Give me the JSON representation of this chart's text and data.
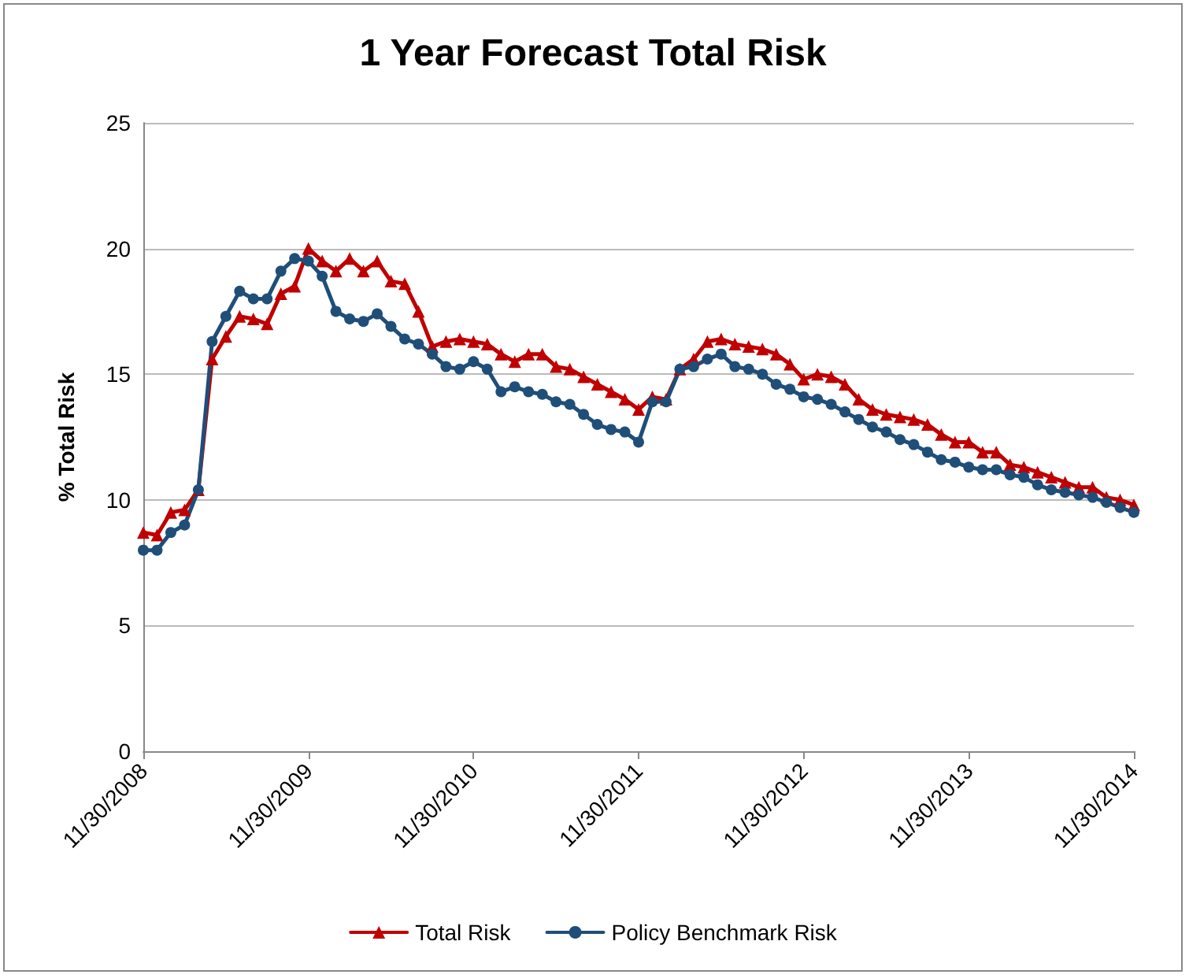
{
  "chart_data": {
    "type": "line",
    "title": "1 Year Forecast Total Risk",
    "ylabel": "% Total Risk",
    "categories": [
      "11/30/2008",
      null,
      null,
      null,
      null,
      null,
      null,
      null,
      null,
      null,
      null,
      null,
      "11/30/2009",
      null,
      null,
      null,
      null,
      null,
      null,
      null,
      null,
      null,
      null,
      null,
      "11/30/2010",
      null,
      null,
      null,
      null,
      null,
      null,
      null,
      null,
      null,
      null,
      null,
      "11/30/2011",
      null,
      null,
      null,
      null,
      null,
      null,
      null,
      null,
      null,
      null,
      null,
      "11/30/2012",
      null,
      null,
      null,
      null,
      null,
      null,
      null,
      null,
      null,
      null,
      null,
      "11/30/2013",
      null,
      null,
      null,
      null,
      null,
      null,
      null,
      null,
      null,
      null,
      null,
      "11/30/2014"
    ],
    "series": [
      {
        "name": "Total Risk",
        "color": "#c00000",
        "marker": "triangle",
        "values": [
          8.7,
          8.6,
          9.5,
          9.6,
          10.4,
          15.6,
          16.5,
          17.3,
          17.2,
          17.0,
          18.2,
          18.5,
          20.0,
          19.5,
          19.1,
          19.6,
          19.1,
          19.5,
          18.7,
          18.6,
          17.5,
          16.1,
          16.3,
          16.4,
          16.3,
          16.2,
          15.8,
          15.5,
          15.8,
          15.8,
          15.3,
          15.2,
          14.9,
          14.6,
          14.3,
          14.0,
          13.6,
          14.1,
          14.0,
          15.2,
          15.6,
          16.3,
          16.4,
          16.2,
          16.1,
          16.0,
          15.8,
          15.4,
          14.8,
          15.0,
          14.9,
          14.6,
          14.0,
          13.6,
          13.4,
          13.3,
          13.2,
          13.0,
          12.6,
          12.3,
          12.3,
          11.9,
          11.9,
          11.4,
          11.3,
          11.1,
          10.9,
          10.7,
          10.5,
          10.5,
          10.1,
          10.0,
          9.8
        ]
      },
      {
        "name": "Policy Benchmark Risk",
        "color": "#1f4e79",
        "marker": "circle",
        "values": [
          8.0,
          8.0,
          8.7,
          9.0,
          10.4,
          16.3,
          17.3,
          18.3,
          18.0,
          18.0,
          19.1,
          19.6,
          19.5,
          18.9,
          17.5,
          17.2,
          17.1,
          17.4,
          16.9,
          16.4,
          16.2,
          15.8,
          15.3,
          15.2,
          15.5,
          15.2,
          14.3,
          14.5,
          14.3,
          14.2,
          13.9,
          13.8,
          13.4,
          13.0,
          12.8,
          12.7,
          12.3,
          13.9,
          13.9,
          15.2,
          15.3,
          15.6,
          15.8,
          15.3,
          15.2,
          15.0,
          14.6,
          14.4,
          14.1,
          14.0,
          13.8,
          13.5,
          13.2,
          12.9,
          12.7,
          12.4,
          12.2,
          11.9,
          11.6,
          11.5,
          11.3,
          11.2,
          11.2,
          11.0,
          10.9,
          10.6,
          10.4,
          10.3,
          10.2,
          10.1,
          9.9,
          9.7,
          9.5
        ]
      }
    ],
    "ylim": [
      0,
      25
    ],
    "yticks": [
      0,
      5,
      10,
      15,
      20,
      25
    ],
    "grid": "y",
    "legend": "bottom"
  }
}
